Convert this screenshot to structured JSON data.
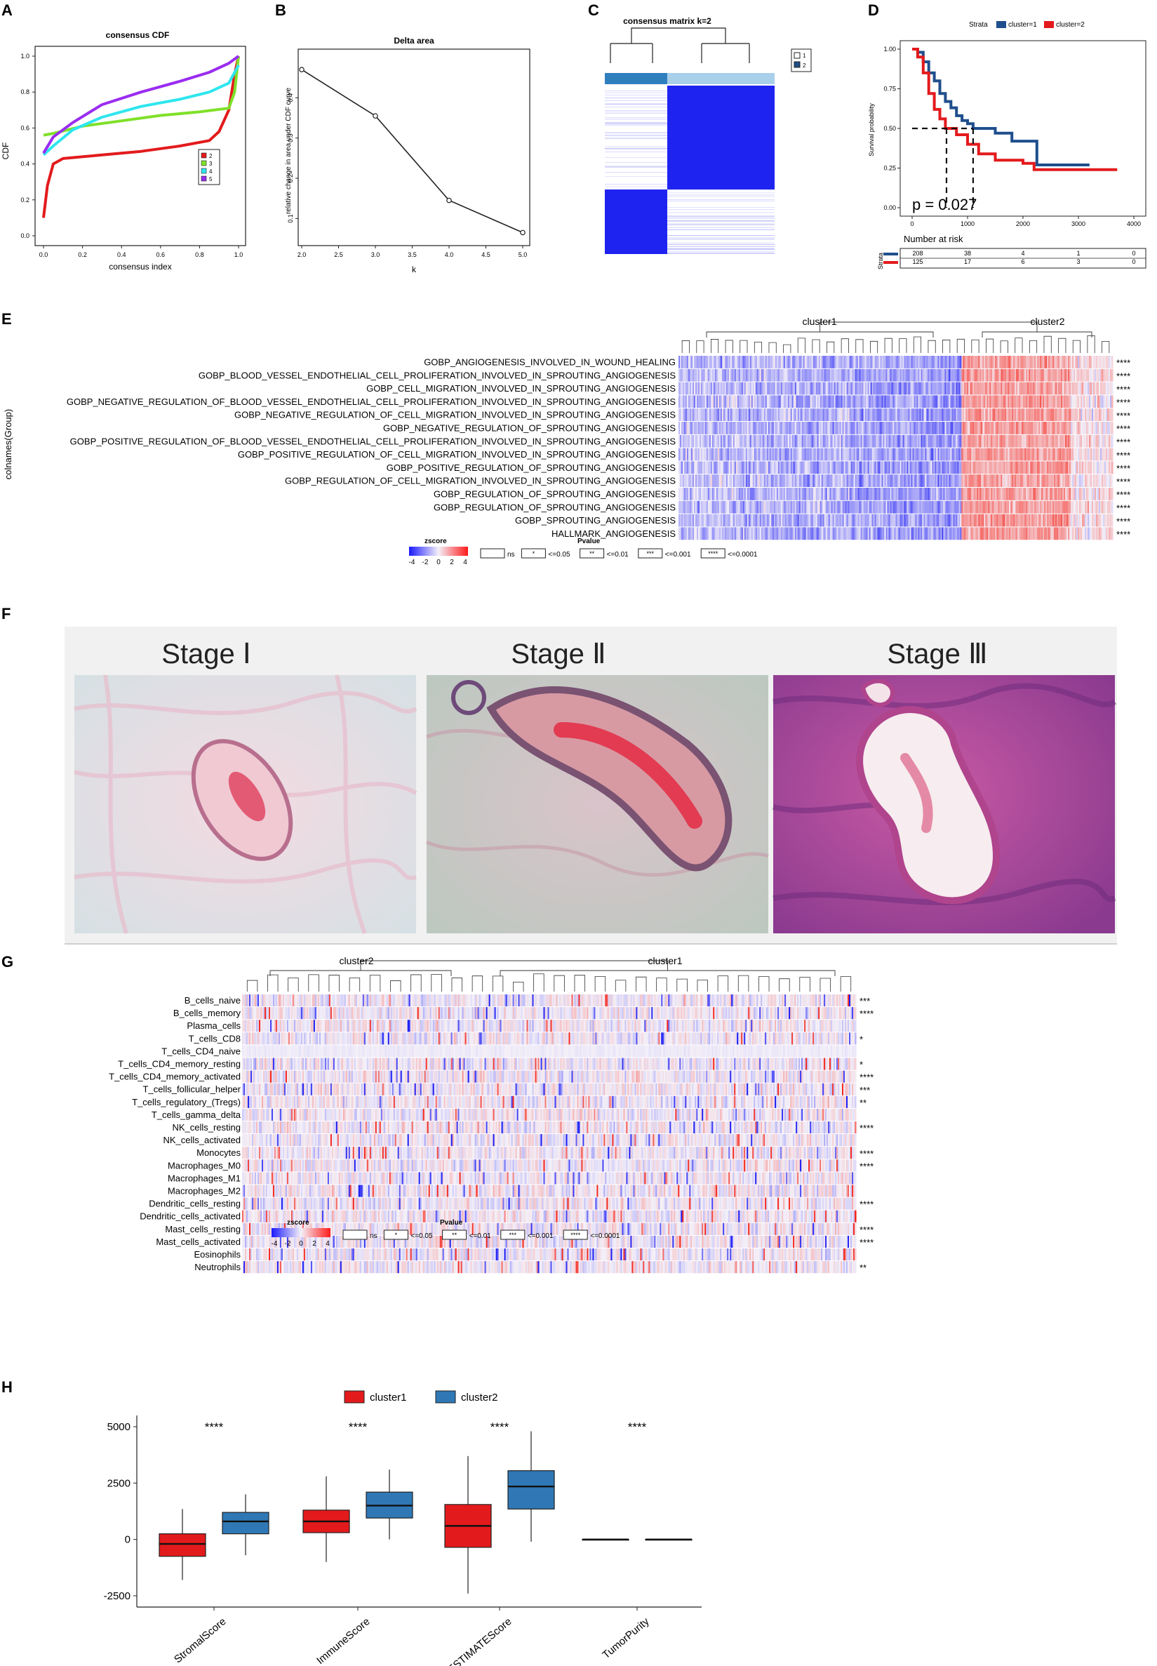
{
  "panel_letters": [
    "A",
    "B",
    "C",
    "D",
    "E",
    "F",
    "G",
    "H"
  ],
  "colors": {
    "red": "#e31a1c",
    "blue": "#2166ac",
    "heat_blue": "#2c2cf5",
    "heat_red": "#f5392c",
    "km_blue": "#1f4e8c",
    "km_red": "#e31a1c"
  },
  "chart_data": [
    {
      "id": "A",
      "type": "line",
      "title": "consensus CDF",
      "xlabel": "consensus index",
      "ylabel": "CDF",
      "xlim": [
        0,
        1
      ],
      "ylim": [
        0,
        1
      ],
      "xticks": [
        "0.0",
        "0.2",
        "0.4",
        "0.6",
        "0.8",
        "1.0"
      ],
      "yticks": [
        "0.0",
        "0.2",
        "0.4",
        "0.6",
        "0.8",
        "1.0"
      ],
      "legend": [
        "2",
        "3",
        "4",
        "5"
      ],
      "legend_position": "right",
      "series": [
        {
          "name": "2",
          "color": "#e31a1c",
          "points": [
            [
              0,
              0.1
            ],
            [
              0.02,
              0.28
            ],
            [
              0.05,
              0.4
            ],
            [
              0.1,
              0.43
            ],
            [
              0.3,
              0.45
            ],
            [
              0.5,
              0.47
            ],
            [
              0.7,
              0.5
            ],
            [
              0.85,
              0.53
            ],
            [
              0.9,
              0.58
            ],
            [
              0.95,
              0.7
            ],
            [
              0.98,
              0.9
            ],
            [
              1,
              1
            ]
          ]
        },
        {
          "name": "3",
          "color": "#7fe02a",
          "points": [
            [
              0,
              0.56
            ],
            [
              0.05,
              0.57
            ],
            [
              0.2,
              0.61
            ],
            [
              0.4,
              0.64
            ],
            [
              0.6,
              0.67
            ],
            [
              0.8,
              0.69
            ],
            [
              0.95,
              0.71
            ],
            [
              0.98,
              0.8
            ],
            [
              1,
              1
            ]
          ]
        },
        {
          "name": "4",
          "color": "#2ee6ee",
          "points": [
            [
              0,
              0.45
            ],
            [
              0.05,
              0.5
            ],
            [
              0.15,
              0.59
            ],
            [
              0.3,
              0.66
            ],
            [
              0.5,
              0.72
            ],
            [
              0.7,
              0.76
            ],
            [
              0.85,
              0.8
            ],
            [
              0.95,
              0.85
            ],
            [
              1,
              0.95
            ]
          ]
        },
        {
          "name": "5",
          "color": "#9a2cf0",
          "points": [
            [
              0,
              0.46
            ],
            [
              0.05,
              0.55
            ],
            [
              0.15,
              0.63
            ],
            [
              0.3,
              0.73
            ],
            [
              0.5,
              0.8
            ],
            [
              0.7,
              0.86
            ],
            [
              0.85,
              0.91
            ],
            [
              0.95,
              0.96
            ],
            [
              1,
              1
            ]
          ]
        }
      ]
    },
    {
      "id": "B",
      "type": "line",
      "title": "Delta area",
      "xlabel": "k",
      "ylabel": "relative change in area under CDF curve",
      "xlim": [
        2,
        5
      ],
      "ylim": [
        0.05,
        0.5
      ],
      "xticks": [
        "2.0",
        "2.5",
        "3.0",
        "3.5",
        "4.0",
        "4.5",
        "5.0"
      ],
      "yticks": [
        "0.1",
        "0.2",
        "0.3",
        "0.4"
      ],
      "x": [
        2,
        3,
        4,
        5
      ],
      "values": [
        0.47,
        0.355,
        0.145,
        0.065
      ]
    },
    {
      "id": "C",
      "type": "heatmap",
      "title": "consensus matrix k=2",
      "legend": [
        "1",
        "2"
      ]
    },
    {
      "id": "D",
      "type": "line",
      "title": "",
      "xlabel": "",
      "ylabel": "Survival probability",
      "legend_title": "Strata",
      "legend": [
        "cluster=1",
        "cluster=2"
      ],
      "xticks": [
        "0",
        "1000",
        "2000",
        "3000",
        "4000"
      ],
      "yticks": [
        "0.00",
        "0.25",
        "0.50",
        "0.75",
        "1.00"
      ],
      "xlim": [
        0,
        4000
      ],
      "ylim": [
        0,
        1
      ],
      "annotation": "p = 0.027",
      "risk_table": {
        "title": "Number at risk",
        "ylabel": "Strata",
        "rows": [
          [
            "208",
            "38",
            "4",
            "1",
            "0"
          ],
          [
            "125",
            "17",
            "6",
            "3",
            "0"
          ]
        ]
      },
      "series": [
        {
          "name": "cluster=1",
          "color": "#1f4e8c",
          "points": [
            [
              0,
              1
            ],
            [
              100,
              0.98
            ],
            [
              200,
              0.92
            ],
            [
              300,
              0.85
            ],
            [
              400,
              0.8
            ],
            [
              500,
              0.72
            ],
            [
              600,
              0.67
            ],
            [
              700,
              0.63
            ],
            [
              800,
              0.58
            ],
            [
              900,
              0.55
            ],
            [
              1000,
              0.53
            ],
            [
              1100,
              0.5
            ],
            [
              1300,
              0.5
            ],
            [
              1500,
              0.47
            ],
            [
              1800,
              0.42
            ],
            [
              2200,
              0.42
            ],
            [
              2250,
              0.27
            ],
            [
              3200,
              0.27
            ]
          ]
        },
        {
          "name": "cluster=2",
          "color": "#e31a1c",
          "points": [
            [
              0,
              1
            ],
            [
              100,
              0.95
            ],
            [
              200,
              0.85
            ],
            [
              300,
              0.72
            ],
            [
              400,
              0.62
            ],
            [
              500,
              0.56
            ],
            [
              600,
              0.5
            ],
            [
              800,
              0.46
            ],
            [
              1000,
              0.4
            ],
            [
              1200,
              0.34
            ],
            [
              1500,
              0.3
            ],
            [
              2000,
              0.28
            ],
            [
              2200,
              0.24
            ],
            [
              3700,
              0.24
            ]
          ]
        }
      ]
    },
    {
      "id": "E",
      "type": "heatmap",
      "clusters": [
        "cluster1",
        "cluster2"
      ],
      "ylabel": "colnames(Group)",
      "rows": [
        "GOBP_ANGIOGENESIS_INVOLVED_IN_WOUND_HEALING",
        "GOBP_BLOOD_VESSEL_ENDOTHELIAL_CELL_PROLIFERATION_INVOLVED_IN_SPROUTING_ANGIOGENESIS",
        "GOBP_CELL_MIGRATION_INVOLVED_IN_SPROUTING_ANGIOGENESIS",
        "GOBP_NEGATIVE_REGULATION_OF_BLOOD_VESSEL_ENDOTHELIAL_CELL_PROLIFERATION_INVOLVED_IN_SPROUTING_ANGIOGENESIS",
        "GOBP_NEGATIVE_REGULATION_OF_CELL_MIGRATION_INVOLVED_IN_SPROUTING_ANGIOGENESIS",
        "GOBP_NEGATIVE_REGULATION_OF_SPROUTING_ANGIOGENESIS",
        "GOBP_POSITIVE_REGULATION_OF_BLOOD_VESSEL_ENDOTHELIAL_CELL_PROLIFERATION_INVOLVED_IN_SPROUTING_ANGIOGENESIS",
        "GOBP_POSITIVE_REGULATION_OF_CELL_MIGRATION_INVOLVED_IN_SPROUTING_ANGIOGENESIS",
        "GOBP_POSITIVE_REGULATION_OF_SPROUTING_ANGIOGENESIS",
        "GOBP_REGULATION_OF_CELL_MIGRATION_INVOLVED_IN_SPROUTING_ANGIOGENESIS",
        "GOBP_REGULATION_OF_SPROUTING_ANGIOGENESIS",
        "GOBP_REGULATION_OF_SPROUTING_ANGIOGENESIS",
        "GOBP_SPROUTING_ANGIOGENESIS",
        "HALLMARK_ANGIOGENESIS"
      ],
      "significance": [
        "****",
        "****",
        "****",
        "****",
        "****",
        "****",
        "****",
        "****",
        "****",
        "****",
        "****",
        "****",
        "****",
        "****"
      ],
      "legend": {
        "zscore_title": "zscore",
        "zscore_ticks": [
          "-4",
          "-2",
          "0",
          "2",
          "4"
        ],
        "pvalue_title": "Pvalue",
        "pvalue_items": [
          [
            "",
            "ns"
          ],
          [
            "*",
            "<=0.05"
          ],
          [
            "**",
            "<=0.01"
          ],
          [
            "***",
            "<=0.001"
          ],
          [
            "****",
            "<=0.0001"
          ]
        ]
      }
    },
    {
      "id": "G",
      "type": "heatmap",
      "clusters": [
        "cluster2",
        "cluster1"
      ],
      "rows": [
        "B_cells_naive",
        "B_cells_memory",
        "Plasma_cells",
        "T_cells_CD8",
        "T_cells_CD4_naive",
        "T_cells_CD4_memory_resting",
        "T_cells_CD4_memory_activated",
        "T_cells_follicular_helper",
        "T_cells_regulatory_(Tregs)",
        "T_cells_gamma_delta",
        "NK_cells_resting",
        "NK_cells_activated",
        "Monocytes",
        "Macrophages_M0",
        "Macrophages_M1",
        "Macrophages_M2",
        "Dendritic_cells_resting",
        "Dendritic_cells_activated",
        "Mast_cells_resting",
        "Mast_cells_activated",
        "Eosinophils",
        "Neutrophils"
      ],
      "significance": [
        "***",
        "****",
        "",
        "*",
        "",
        "*",
        "****",
        "***",
        "**",
        "",
        "****",
        "",
        "****",
        "****",
        "",
        "",
        "****",
        "",
        "****",
        "****",
        "",
        "**"
      ],
      "legend": {
        "zscore_title": "zscore",
        "zscore_ticks": [
          "-4",
          "-2",
          "0",
          "2",
          "4"
        ],
        "pvalue_title": "Pvalue",
        "pvalue_items": [
          [
            "",
            "ns"
          ],
          [
            "*",
            "<=0.05"
          ],
          [
            "**",
            "<=0.01"
          ],
          [
            "***",
            "<=0.001"
          ],
          [
            "****",
            "<=0.0001"
          ]
        ]
      }
    },
    {
      "id": "H",
      "type": "box",
      "legend": [
        "cluster1",
        "cluster2"
      ],
      "legend_position": "top",
      "categories": [
        "StromalScore",
        "ImmuneScore",
        "ESTIMATEScore",
        "TumorPurity"
      ],
      "ylim": [
        -3000,
        5500
      ],
      "yticks": [
        "5000",
        "2500",
        "0",
        "-2500"
      ],
      "significance": [
        "****",
        "****",
        "****",
        "****"
      ],
      "series": [
        {
          "name": "cluster1",
          "color": "#e31a1c",
          "boxes": [
            [
              -1800,
              -750,
              -200,
              250,
              1350
            ],
            [
              -1000,
              300,
              800,
              1300,
              2800
            ],
            [
              -2400,
              -350,
              600,
              1550,
              3700
            ],
            [
              0,
              0,
              0,
              0,
              0
            ]
          ]
        },
        {
          "name": "cluster2",
          "color": "#2f78b5",
          "boxes": [
            [
              -700,
              250,
              800,
              1200,
              2000
            ],
            [
              0,
              950,
              1500,
              2100,
              3100
            ],
            [
              -100,
              1350,
              2350,
              3050,
              4800
            ],
            [
              0,
              0,
              0,
              0,
              0
            ]
          ]
        }
      ]
    }
  ],
  "panel_F": {
    "labels": [
      "Stage Ⅰ",
      "Stage Ⅱ",
      "Stage Ⅲ"
    ]
  }
}
